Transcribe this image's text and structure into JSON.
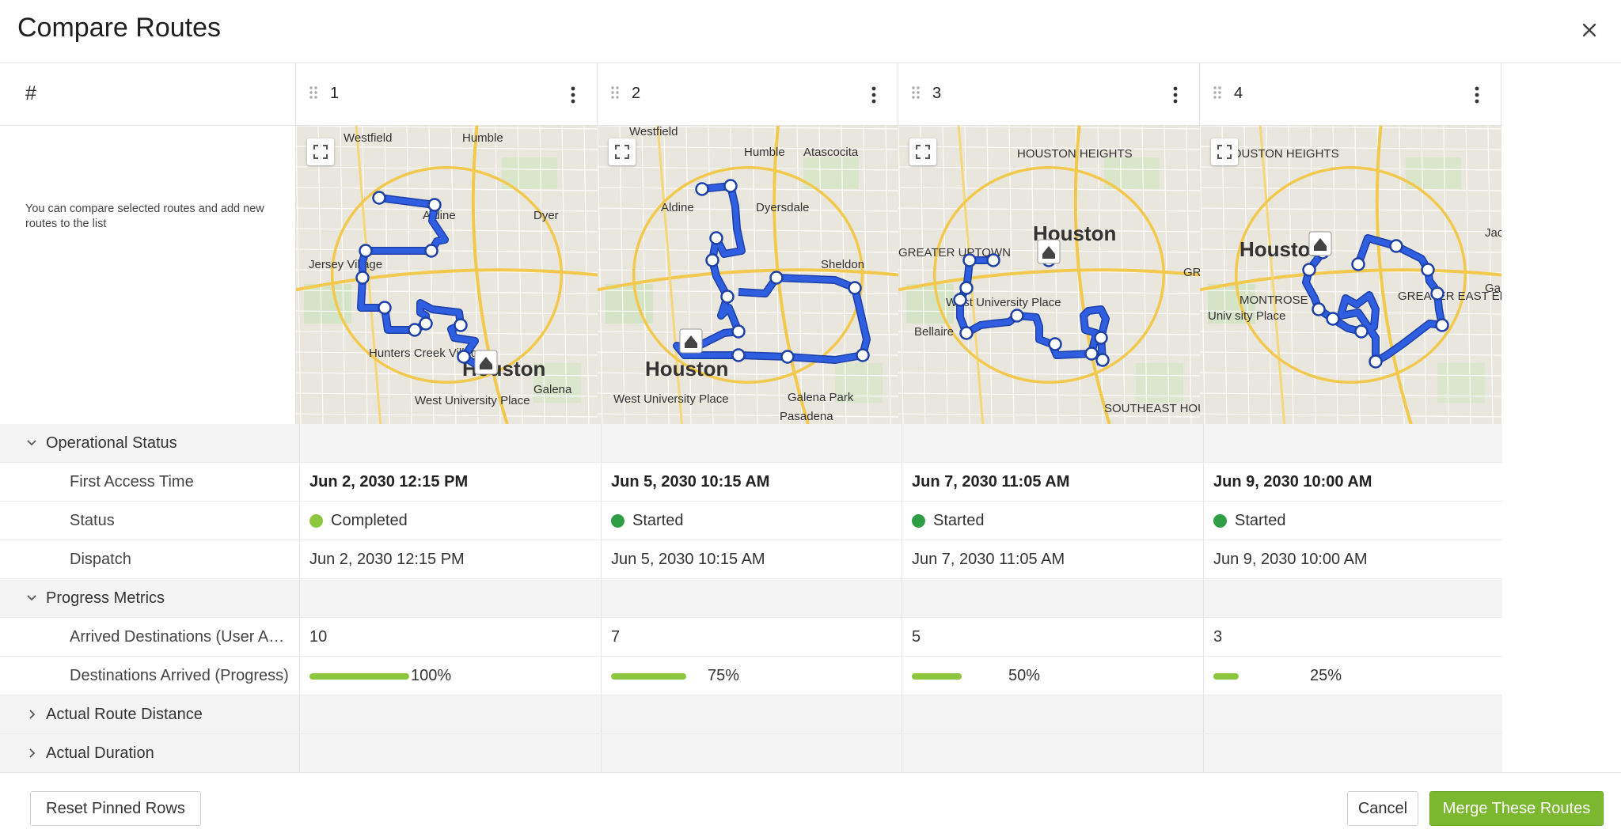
{
  "dialog": {
    "title": "Compare Routes"
  },
  "grid": {
    "hash_header": "#",
    "description": "You can compare selected routes and add new routes to the list"
  },
  "routes": [
    {
      "number": "1",
      "first_access_time": "Jun 2, 2030 12:15 PM",
      "status": "Completed",
      "status_color": "#8dc63f",
      "dispatch": "Jun 2, 2030 12:15 PM",
      "arrived_destinations": "10",
      "progress_percent_label": "100%",
      "progress_fraction": 1.0,
      "map_labels": [
        "Westfield",
        "Humble",
        "Aldine",
        "Dyer",
        "Jersey Village",
        "Hunters Creek Village",
        "Houston",
        "West University Place",
        "Galena"
      ]
    },
    {
      "number": "2",
      "first_access_time": "Jun 5, 2030 10:15 AM",
      "status": "Started",
      "status_color": "#2e9e44",
      "dispatch": "Jun 5, 2030 10:15 AM",
      "arrived_destinations": "7",
      "progress_percent_label": "75%",
      "progress_fraction": 0.75,
      "map_labels": [
        "Westfield",
        "Humble",
        "Atascocita",
        "Aldine",
        "Dyersdale",
        "Sheldon",
        "Houston",
        "West University Place",
        "Galena Park",
        "Pasadena"
      ]
    },
    {
      "number": "3",
      "first_access_time": "Jun 7, 2030 11:05 AM",
      "status": "Started",
      "status_color": "#2e9e44",
      "dispatch": "Jun 7, 2030 11:05 AM",
      "arrived_destinations": "5",
      "progress_percent_label": "50%",
      "progress_fraction": 0.5,
      "map_labels": [
        "HOUSTON HEIGHTS",
        "Houston",
        "GREATER UPTOWN",
        "West University Place",
        "Bellaire",
        "GREATER EAST END",
        "SOUTHEAST HOUSTON"
      ]
    },
    {
      "number": "4",
      "first_access_time": "Jun 9, 2030 10:00 AM",
      "status": "Started",
      "status_color": "#2e9e44",
      "dispatch": "Jun 9, 2030 10:00 AM",
      "arrived_destinations": "3",
      "progress_percent_label": "25%",
      "progress_fraction": 0.25,
      "map_labels": [
        "HOUSTON HEIGHTS",
        "Houston",
        "Jacin",
        "MONTROSE",
        "GREATER EAST END",
        "Gale",
        "Univ sity Place"
      ]
    }
  ],
  "groups": {
    "operational_status": "Operational Status",
    "progress_metrics": "Progress Metrics",
    "actual_route_distance": "Actual Route Distance",
    "actual_duration": "Actual Duration"
  },
  "row_labels": {
    "first_access_time": "First Access Time",
    "status": "Status",
    "dispatch": "Dispatch",
    "arrived_destinations": "Arrived Destinations (User Action)",
    "destinations_arrived": "Destinations Arrived (Progress)"
  },
  "footer": {
    "reset_label": "Reset Pinned Rows",
    "cancel_label": "Cancel",
    "merge_label": "Merge These Routes"
  },
  "icons": {
    "close": "close-icon",
    "drag": "drag-handle-icon",
    "kebab": "kebab-menu-icon",
    "expand": "expand-icon",
    "add": "plus-icon",
    "chevron_down": "chevron-down-icon",
    "chevron_right": "chevron-right-icon",
    "home": "home-icon"
  },
  "colors": {
    "accent": "#7cb82f",
    "route_line": "#2f5fe0",
    "progress": "#8dc63f",
    "started": "#2e9e44",
    "completed": "#8dc63f"
  }
}
